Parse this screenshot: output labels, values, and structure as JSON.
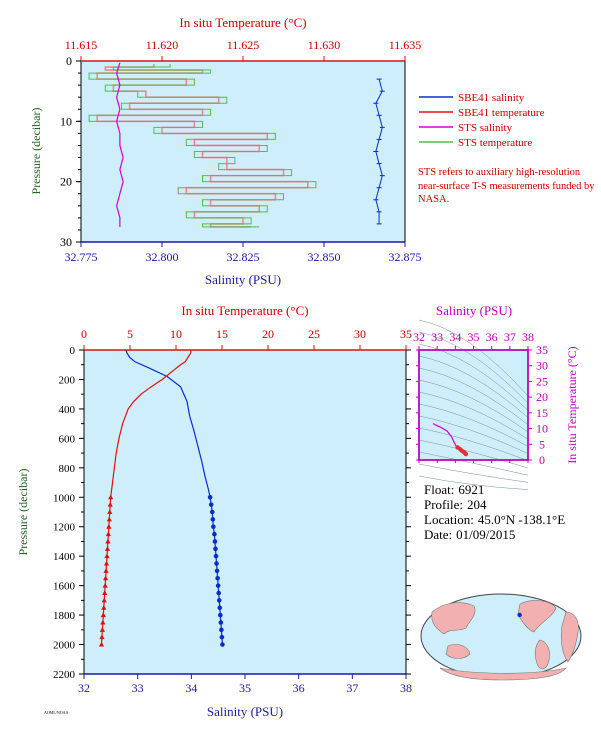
{
  "colors": {
    "plot_bg": "#cdeefa",
    "salinity": "#0a2dc8",
    "temperature": "#e01010",
    "sts_salinity": "#d400d4",
    "sts_temperature": "#55bb55",
    "sbe_temp_light": "#f08a8a",
    "green_axis": "#226622",
    "magenta_axis": "#bb00bb",
    "blue_axis": "#1a1aa0"
  },
  "info": {
    "float_label": "Float:",
    "float_value": "6921",
    "profile_label": "Profile:",
    "profile_value": "204",
    "location_label": "Location:",
    "location_value": "45.0°N  -138.1°E",
    "date_label": "Date:",
    "date_value": "01/09/2015"
  },
  "footer_code": "AOML/NOAA",
  "chart_data": [
    {
      "type": "line",
      "name": "near-surface-profile",
      "top_axis_label": "In situ Temperature (°C)",
      "top_ticks": [
        "11.615",
        "11.620",
        "11.625",
        "11.630",
        "11.635"
      ],
      "top_range": [
        11.615,
        11.635
      ],
      "xlabel": "Salinity (PSU)",
      "bottom_ticks": [
        "32.775",
        "32.800",
        "32.825",
        "32.850",
        "32.875"
      ],
      "bottom_range": [
        32.775,
        32.875
      ],
      "ylabel": "Pressure (decibar)",
      "y_ticks": [
        "0",
        "10",
        "20",
        "30"
      ],
      "ylim": [
        0,
        30
      ],
      "legend": [
        {
          "label": "SBE41 salinity",
          "color_key": "salinity"
        },
        {
          "label": "SBE41 temperature",
          "color_key": "temperature"
        },
        {
          "label": "STS salinity",
          "color_key": "sts_salinity"
        },
        {
          "label": "STS temperature",
          "color_key": "sts_temperature"
        }
      ],
      "note": "STS refers to auxiliary high-resolution near-surface T-S measurements funded by NASA.",
      "sbe41_salinity": {
        "pressure": [
          3,
          5,
          7,
          9,
          11,
          13,
          15,
          17,
          19,
          21,
          23,
          25,
          27
        ],
        "salinity": [
          32.867,
          32.868,
          32.866,
          32.867,
          32.868,
          32.867,
          32.866,
          32.867,
          32.868,
          32.867,
          32.866,
          32.867,
          32.867
        ]
      },
      "sts_salinity": {
        "pressure": [
          0.3,
          2,
          4,
          6,
          8,
          10,
          12,
          14,
          16,
          18,
          20,
          22,
          24,
          26,
          27.5
        ],
        "salinity": [
          32.787,
          32.786,
          32.787,
          32.786,
          32.787,
          32.786,
          32.787,
          32.787,
          32.788,
          32.787,
          32.788,
          32.787,
          32.786,
          32.787,
          32.787
        ]
      },
      "sts_temperature": {
        "pressure": [
          0.5,
          1,
          1.5,
          2,
          3,
          4,
          5,
          6,
          7,
          8,
          9,
          10,
          11,
          12,
          13,
          14,
          15,
          16,
          17,
          18,
          19,
          20,
          21,
          22,
          23,
          24,
          25,
          26,
          27,
          27.5
        ],
        "temperature": [
          11.6205,
          11.617,
          11.623,
          11.6155,
          11.622,
          11.6165,
          11.6185,
          11.624,
          11.6175,
          11.623,
          11.6155,
          11.6225,
          11.6195,
          11.627,
          11.6215,
          11.6265,
          11.622,
          11.6245,
          11.6235,
          11.628,
          11.6225,
          11.6295,
          11.621,
          11.6275,
          11.6225,
          11.6265,
          11.6215,
          11.6255,
          11.6225,
          11.626
        ]
      },
      "sbe41_temperature": {
        "pressure": [
          0.5,
          1,
          1.5,
          2,
          3,
          4,
          5,
          6,
          7,
          8,
          9,
          10,
          11,
          12,
          13,
          14,
          15,
          16,
          17,
          18,
          19,
          20,
          21,
          22,
          23,
          24,
          25,
          26,
          27,
          27.5
        ],
        "temperature": [
          11.6195,
          11.6165,
          11.6225,
          11.616,
          11.6215,
          11.617,
          11.619,
          11.6235,
          11.618,
          11.6225,
          11.616,
          11.622,
          11.62,
          11.6265,
          11.622,
          11.626,
          11.6225,
          11.624,
          11.624,
          11.6275,
          11.623,
          11.629,
          11.6215,
          11.627,
          11.623,
          11.626,
          11.622,
          11.625,
          11.623,
          11.6255
        ]
      }
    },
    {
      "type": "line",
      "name": "full-depth-profile",
      "top_axis_label": "In situ Temperature (°C)",
      "top_ticks": [
        "0",
        "5",
        "10",
        "15",
        "20",
        "25",
        "30",
        "35"
      ],
      "top_range": [
        0,
        35
      ],
      "xlabel": "Salinity (PSU)",
      "bottom_ticks": [
        "32",
        "33",
        "34",
        "35",
        "36",
        "37",
        "38"
      ],
      "bottom_range": [
        32,
        38
      ],
      "ylabel": "Pressure (decibar)",
      "y_ticks": [
        "0",
        "200",
        "400",
        "600",
        "800",
        "1000",
        "1200",
        "1400",
        "1600",
        "1800",
        "2000",
        "2200"
      ],
      "ylim": [
        0,
        2200
      ],
      "salinity": {
        "pressure": [
          0,
          10,
          20,
          50,
          80,
          120,
          180,
          250,
          350,
          450,
          550,
          650,
          750,
          850,
          950,
          1000,
          1050,
          1100,
          1150,
          1200,
          1250,
          1300,
          1350,
          1400,
          1450,
          1500,
          1550,
          1600,
          1650,
          1700,
          1750,
          1800,
          1850,
          1900,
          1950,
          2000
        ],
        "salinity": [
          32.78,
          32.79,
          32.8,
          32.85,
          32.95,
          33.2,
          33.55,
          33.8,
          33.92,
          33.97,
          34.05,
          34.12,
          34.19,
          34.25,
          34.32,
          34.35,
          34.37,
          34.39,
          34.4,
          34.41,
          34.43,
          34.44,
          34.45,
          34.46,
          34.47,
          34.48,
          34.49,
          34.5,
          34.51,
          34.52,
          34.53,
          34.54,
          34.55,
          34.56,
          34.57,
          34.58
        ]
      },
      "temperature": {
        "pressure": [
          0,
          10,
          20,
          50,
          80,
          100,
          150,
          200,
          250,
          300,
          350,
          400,
          500,
          600,
          700,
          800,
          900,
          1000,
          1050,
          1100,
          1150,
          1200,
          1250,
          1300,
          1350,
          1400,
          1450,
          1500,
          1550,
          1600,
          1650,
          1700,
          1750,
          1800,
          1850,
          1900,
          1950,
          2000
        ],
        "temperature": [
          11.62,
          11.62,
          11.6,
          11.3,
          11.0,
          10.5,
          9.5,
          8.5,
          7.3,
          6.2,
          5.4,
          4.8,
          4.2,
          3.8,
          3.5,
          3.3,
          3.1,
          2.9,
          2.85,
          2.8,
          2.75,
          2.7,
          2.65,
          2.6,
          2.55,
          2.5,
          2.45,
          2.4,
          2.35,
          2.3,
          2.25,
          2.2,
          2.15,
          2.1,
          2.05,
          2.0,
          1.95,
          1.9
        ]
      },
      "marker_start_pressure": 1000
    },
    {
      "type": "scatter",
      "name": "ts-diagram",
      "top_axis_label": "Salinity (PSU)",
      "x_ticks": [
        "32",
        "33",
        "34",
        "35",
        "36",
        "37",
        "38"
      ],
      "xlim": [
        32,
        38
      ],
      "right_axis_label": "In situ Temperature (°C)",
      "y_ticks": [
        "0",
        "5",
        "10",
        "15",
        "20",
        "25",
        "30",
        "35"
      ],
      "ylim": [
        0,
        35
      ],
      "curve": {
        "salinity": [
          32.78,
          32.9,
          33.2,
          33.55,
          33.8,
          33.92,
          34.0,
          34.12,
          34.25,
          34.35,
          34.45,
          34.52,
          34.58
        ],
        "temperature": [
          11.62,
          11.2,
          10.4,
          9.2,
          7.3,
          5.8,
          4.8,
          4.0,
          3.5,
          3.0,
          2.6,
          2.25,
          1.9
        ]
      }
    },
    {
      "type": "map",
      "name": "float-location-map",
      "marker": {
        "lat": 45.0,
        "lon": -138.1
      }
    }
  ]
}
